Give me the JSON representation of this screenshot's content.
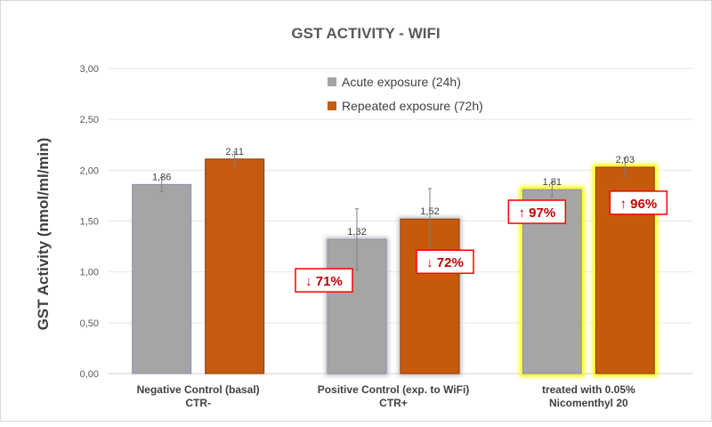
{
  "chart_data": {
    "type": "bar",
    "title": "GST ACTIVITY - WIFI",
    "ylabel": "GST Activity (nmol/ml/min)",
    "xlabel": "",
    "ylim": [
      0,
      3
    ],
    "yticks": [
      "0,00",
      "0,50",
      "1,00",
      "1,50",
      "2,00",
      "2,50",
      "3,00"
    ],
    "ytick_values": [
      0,
      0.5,
      1,
      1.5,
      2,
      2.5,
      3
    ],
    "grid": true,
    "legend_position": "top-center",
    "categories": [
      [
        "Negative Control (basal)",
        "CTR-"
      ],
      [
        "Positive Control (exp. to WiFi)",
        "CTR+"
      ],
      [
        "treated with 0.05%",
        "Nicomenthyl 20"
      ]
    ],
    "series": [
      {
        "name": "Acute exposure (24h)",
        "color": "#a5a5a5",
        "values": [
          1.86,
          1.32,
          1.81
        ],
        "labels": [
          "1,86",
          "1,32",
          "1,81"
        ],
        "errors": [
          0.07,
          0.3,
          0.07
        ]
      },
      {
        "name": "Repeated exposure (72h)",
        "color": "#c55a11",
        "values": [
          2.11,
          1.52,
          2.03
        ],
        "labels": [
          "2,11",
          "1,52",
          "2,03"
        ],
        "errors": [
          0.07,
          0.3,
          0.09
        ]
      }
    ],
    "annotations": [
      {
        "text": "↓ 71%",
        "category": 1,
        "series": 0
      },
      {
        "text": "↓ 72%",
        "category": 1,
        "series": 1
      },
      {
        "text": "↑ 97%",
        "category": 2,
        "series": 0
      },
      {
        "text": "↑ 96%",
        "category": 2,
        "series": 1
      }
    ],
    "highlight_color": "#ffff00",
    "annotation_color": "#c00000"
  }
}
